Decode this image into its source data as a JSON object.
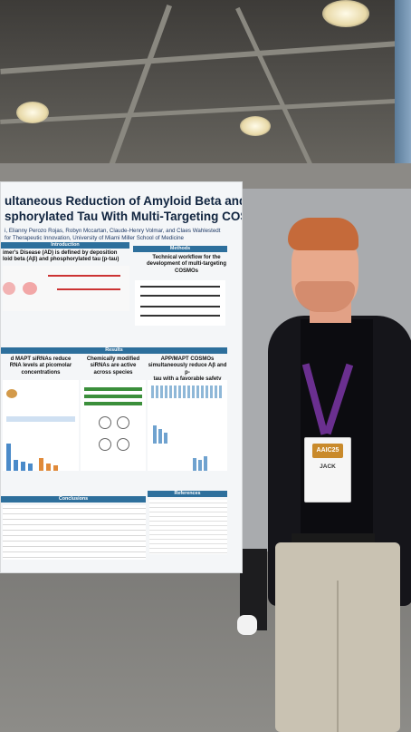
{
  "poster": {
    "title_line1": "ultaneous Reduction of Amyloid Beta and",
    "title_line2": "sphorylated Tau With Multi-Targeting COSMOs",
    "authors_line1": "i, Elianny Perozo Rojas, Robyn Mccartan, Claude-Henry Volmar, and Claes Wahlestedt",
    "authors_line2": "for Therapeutic Innovation, University of Miami Miller School of Medicine",
    "sections": {
      "introduction": "Introduction",
      "methods": "Methods",
      "results": "Results",
      "conclusions": "Conclusions",
      "references": "References"
    },
    "intro_text_line1": "imer's Disease (AD) is defined by deposition",
    "intro_text_line2": "loid beta (Aβ) and phosphorylated tau (p-tau)",
    "methods_heading_line1": "Technical workflow for the",
    "methods_heading_line2": "development of multi-targeting",
    "methods_heading_line3": "COSMOs",
    "results_col1_line1": "d MAPT siRNAs reduce",
    "results_col1_line2": "RNA levels at picomolar",
    "results_col1_line3": "concentrations",
    "results_col2_line1": "Chemically modified",
    "results_col2_line2": "siRNAs are active",
    "results_col2_line3": "across species",
    "results_col3_line1": "APP/MAPT COSMOs",
    "results_col3_line2": "simultaneously reduce Aβ and p-",
    "results_col3_line3": "tau with a favorable safety profile"
  },
  "badge": {
    "logo": "AAIC25",
    "name": "JACK"
  },
  "colors": {
    "poster_header_blue": "#2d6f9c",
    "title_navy": "#10243f",
    "lanyard_purple": "#6a2f8f"
  }
}
